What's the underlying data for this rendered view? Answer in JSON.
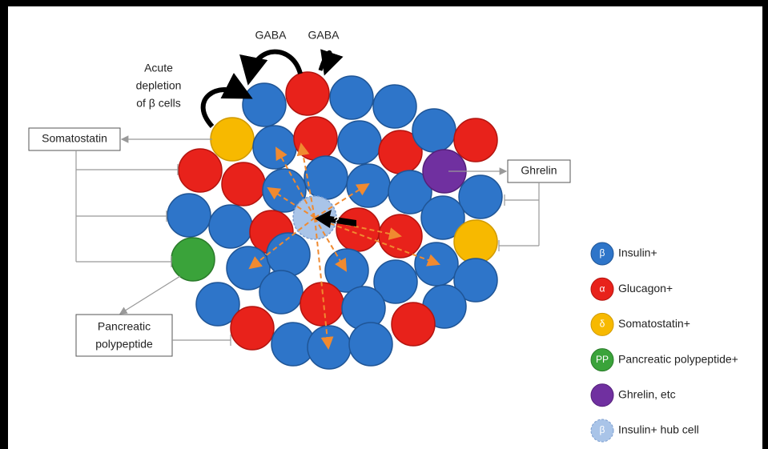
{
  "annotations": {
    "gaba_left": "GABA",
    "gaba_right": "GABA",
    "acute_depletion": [
      "Acute",
      "depletion",
      "of β cells"
    ],
    "hub_question": "?"
  },
  "boxes": {
    "somatostatin": "Somatostatin",
    "ghrelin": "Ghrelin",
    "pancreatic_polypeptide": [
      "Pancreatic",
      "polypeptide"
    ]
  },
  "legend": [
    {
      "symbol": "β",
      "label": "Insulin+"
    },
    {
      "symbol": "α",
      "label": "Glucagon+"
    },
    {
      "symbol": "δ",
      "label": "Somatostatin+"
    },
    {
      "symbol": "PP",
      "label": "Pancreatic polypeptide+"
    },
    {
      "symbol": "",
      "label": "Ghrelin, etc"
    },
    {
      "symbol": "β",
      "label": "Insulin+ hub cell"
    }
  ]
}
